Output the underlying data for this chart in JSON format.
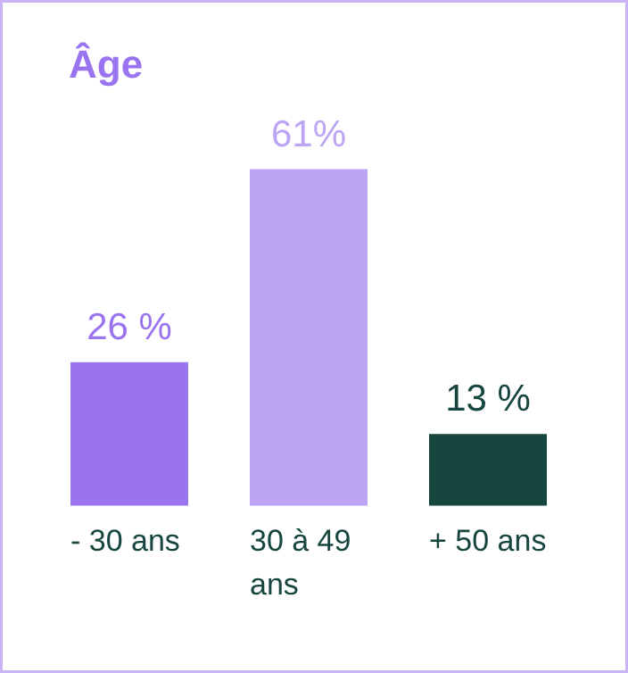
{
  "chart_data": {
    "type": "bar",
    "title": "Âge",
    "categories": [
      "- 30 ans",
      "30 à 49 ans",
      "+ 50 ans"
    ],
    "values": [
      26,
      61,
      13
    ],
    "colors": [
      "#9a74f0",
      "#bca5f4",
      "#17463f"
    ],
    "value_labels": [
      "26 %",
      "61%",
      "13 %"
    ]
  }
}
